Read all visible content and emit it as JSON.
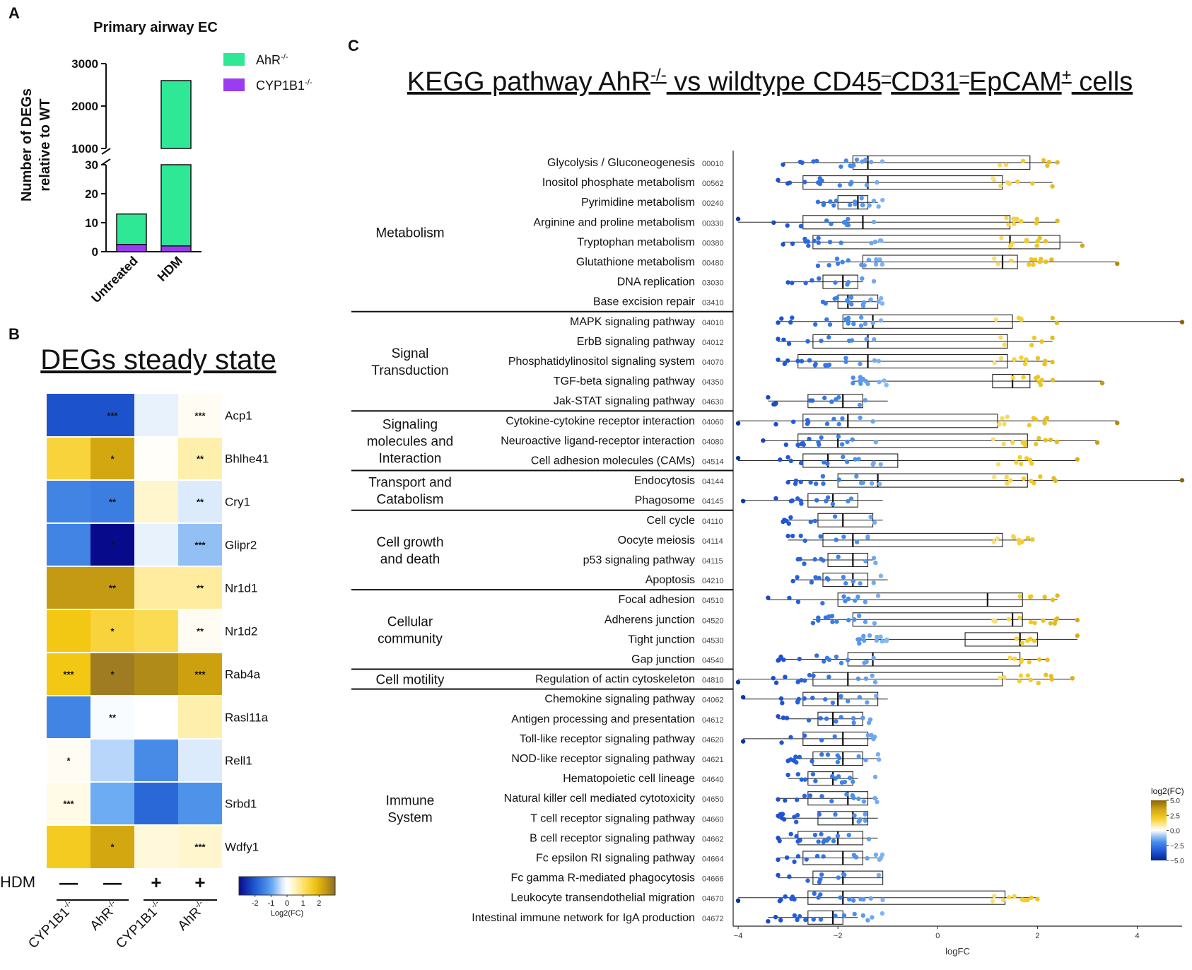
{
  "figure": {
    "panel_labels": [
      "A",
      "B",
      "C"
    ]
  },
  "panel_a": {
    "title": "Primary airway EC",
    "ylabel_line1": "Number of DEGs",
    "ylabel_line2": "relative to WT",
    "legend": [
      {
        "label": "AhR",
        "sup": "-/-",
        "color": "#2ee896"
      },
      {
        "label": "CYP1B1",
        "sup": "-/-",
        "color": "#9b3cf0"
      }
    ],
    "upper_ticks": [
      "3000",
      "2000",
      "1000"
    ],
    "lower_ticks": [
      "30",
      "20",
      "10",
      "0"
    ],
    "categories": [
      "Untreated",
      "HDM"
    ]
  },
  "panel_b": {
    "title": "DEGs steady state",
    "hdm_label": "HDM",
    "hdm_signs": [
      "—",
      "—",
      "+",
      "+"
    ],
    "columns": [
      {
        "label": "CYP1B1",
        "sup": "-/-"
      },
      {
        "label": "AhR",
        "sup": "-/-"
      },
      {
        "label": "CYP1B1",
        "sup": "-/-"
      },
      {
        "label": "AhR",
        "sup": "-/-"
      }
    ],
    "colorbar_ticks": [
      "-2",
      "-1",
      "0",
      "1",
      "2"
    ],
    "colorbar_label": "Log2(FC)"
  },
  "panel_c": {
    "title_main": "KEGG pathway AhR",
    "title_sup": "-/-",
    "title_rest": " vs wildtype CD45",
    "title_sup2": "–",
    "title_mid": "CD31",
    "title_sup3": "–",
    "title_end": "EpCAM",
    "title_sup4": "+",
    "title_tail": " cells",
    "xlabel": "logFC",
    "colorbar_title": "log2(FC)",
    "colorbar_ticks": [
      "5.0",
      "2.5",
      "0.0",
      "−2.5",
      "−5.0"
    ],
    "groups": [
      {
        "label_lines": [
          "Metabolism"
        ]
      },
      {
        "label_lines": [
          "Signal",
          "Transduction"
        ]
      },
      {
        "label_lines": [
          "Signaling",
          "molecules and",
          "Interaction"
        ]
      },
      {
        "label_lines": [
          "Transport and",
          "Catabolism"
        ]
      },
      {
        "label_lines": [
          "Cell growth",
          "and death"
        ]
      },
      {
        "label_lines": [
          "Cellular",
          "community"
        ]
      },
      {
        "label_lines": [
          "Cell motility"
        ]
      },
      {
        "label_lines": [
          "Immune",
          "System"
        ]
      }
    ]
  },
  "chart_data": [
    {
      "type": "bar",
      "panel": "A",
      "title": "Primary airway EC",
      "stacked": true,
      "broken_axis": true,
      "categories": [
        "Untreated",
        "HDM"
      ],
      "series": [
        {
          "name": "CYP1B1-/-",
          "values": [
            2.5,
            2
          ]
        },
        {
          "name": "AhR-/-",
          "values": [
            10.5,
            2598
          ]
        }
      ],
      "ylabel": "Number of DEGs relative to WT",
      "ylim_lower": [
        0,
        30
      ],
      "ylim_upper": [
        1000,
        3000
      ]
    },
    {
      "type": "heatmap",
      "panel": "B",
      "title": "DEGs steady state",
      "rows": [
        "Acp1",
        "Bhlhe41",
        "Cry1",
        "Glipr2",
        "Nr1d1",
        "Nr1d2",
        "Rab4a",
        "Rasl11a",
        "Rell1",
        "Srbd1",
        "Wdfy1"
      ],
      "columns": [
        "CYP1B1-/- HDM−",
        "AhR-/- HDM−",
        "CYP1B1-/- HDM+",
        "AhR-/- HDM+"
      ],
      "values": [
        [
          -2.1,
          -2.1,
          -0.2,
          0.1
        ],
        [
          1.4,
          2.2,
          0.05,
          0.6
        ],
        [
          -1.4,
          -1.5,
          0.4,
          -0.3
        ],
        [
          -1.4,
          -3.0,
          -0.2,
          -0.7
        ],
        [
          2.4,
          2.4,
          0.7,
          0.7
        ],
        [
          1.7,
          1.4,
          1.2,
          0.1
        ],
        [
          1.7,
          2.8,
          2.6,
          2.3
        ],
        [
          -1.4,
          -0.05,
          0.0,
          0.6
        ],
        [
          0.1,
          -0.5,
          -1.3,
          -0.3
        ],
        [
          0.2,
          -0.9,
          -1.8,
          -1.2
        ],
        [
          1.6,
          2.2,
          0.3,
          0.4
        ]
      ],
      "significance": [
        [
          "",
          "***",
          "",
          "***"
        ],
        [
          "",
          "*",
          "",
          "**"
        ],
        [
          "",
          "**",
          "",
          "**"
        ],
        [
          "",
          "*",
          "",
          "***"
        ],
        [
          "",
          "**",
          "",
          "**"
        ],
        [
          "",
          "*",
          "",
          "**"
        ],
        [
          "***",
          "*",
          "",
          "***"
        ],
        [
          "",
          "**",
          "",
          ""
        ],
        [
          "*",
          "",
          "",
          ""
        ],
        [
          "***",
          "",
          "",
          ""
        ],
        [
          "",
          "*",
          "",
          "***"
        ]
      ],
      "colorbar_range": [
        -3,
        3
      ],
      "colorbar_label": "Log2(FC)"
    },
    {
      "type": "scatter",
      "subtype": "boxplot_with_points",
      "panel": "C",
      "title": "KEGG pathway AhR-/- vs wildtype CD45–CD31–EpCAM+ cells",
      "xlabel": "logFC",
      "xlim": [
        -4.1,
        4.9
      ],
      "xticks": [
        -4,
        -2,
        0,
        2,
        4
      ],
      "color_scale": {
        "label": "log2(FC)",
        "range": [
          -5,
          5
        ]
      },
      "pathways": [
        {
          "name": "Glycolysis / Gluconeogenesis",
          "id": "00010",
          "group": 0,
          "q1": -1.7,
          "median": -1.4,
          "q3": 1.85,
          "wmin": -3.1,
          "wmax": 2.4
        },
        {
          "name": "Inositol phosphate metabolism",
          "id": "00562",
          "group": 0,
          "q1": -2.7,
          "median": -1.4,
          "q3": 1.3,
          "wmin": -3.2,
          "wmax": 2.3
        },
        {
          "name": "Pyrimidine metabolism",
          "id": "00240",
          "group": 0,
          "q1": -2.0,
          "median": -1.6,
          "q3": -1.4,
          "wmin": -2.4,
          "wmax": -1.2
        },
        {
          "name": "Arginine and proline metabolism",
          "id": "00330",
          "group": 0,
          "q1": -2.7,
          "median": -1.5,
          "q3": 1.45,
          "wmin": -4.0,
          "wmax": 2.4
        },
        {
          "name": "Tryptophan metabolism",
          "id": "00380",
          "group": 0,
          "q1": -2.5,
          "median": 1.45,
          "q3": 2.45,
          "wmin": -3.1,
          "wmax": 2.9
        },
        {
          "name": "Glutathione metabolism",
          "id": "00480",
          "group": 0,
          "q1": -1.5,
          "median": 1.3,
          "q3": 1.6,
          "wmin": -2.4,
          "wmax": 3.6
        },
        {
          "name": "DNA replication",
          "id": "03030",
          "group": 0,
          "q1": -2.3,
          "median": -1.9,
          "q3": -1.6,
          "wmin": -3.0,
          "wmax": -1.5
        },
        {
          "name": "Base excision repair",
          "id": "03410",
          "group": 0,
          "q1": -2.0,
          "median": -1.8,
          "q3": -1.2,
          "wmin": -2.3,
          "wmax": -1.2
        },
        {
          "name": "MAPK signaling pathway",
          "id": "04010",
          "group": 1,
          "q1": -1.9,
          "median": -1.3,
          "q3": 1.5,
          "wmin": -3.2,
          "wmax": 4.9
        },
        {
          "name": "ErbB signaling pathway",
          "id": "04012",
          "group": 1,
          "q1": -2.5,
          "median": -1.4,
          "q3": 1.4,
          "wmin": -3.2,
          "wmax": 2.3
        },
        {
          "name": "Phosphatidylinositol signaling system",
          "id": "04070",
          "group": 1,
          "q1": -2.8,
          "median": -1.4,
          "q3": 1.4,
          "wmin": -3.2,
          "wmax": 2.3
        },
        {
          "name": "TGF-beta signaling pathway",
          "id": "04350",
          "group": 1,
          "q1": 1.1,
          "median": 1.5,
          "q3": 1.85,
          "wmin": -1.7,
          "wmax": 3.3
        },
        {
          "name": "Jak-STAT signaling pathway",
          "id": "04630",
          "group": 1,
          "q1": -2.6,
          "median": -1.9,
          "q3": -1.5,
          "wmin": -3.4,
          "wmax": -1.0
        },
        {
          "name": "Cytokine-cytokine receptor interaction",
          "id": "04060",
          "group": 2,
          "q1": -2.7,
          "median": -1.8,
          "q3": 1.2,
          "wmin": -4.0,
          "wmax": 3.6
        },
        {
          "name": "Neuroactive ligand-receptor interaction",
          "id": "04080",
          "group": 2,
          "q1": -2.8,
          "median": -2.0,
          "q3": 1.8,
          "wmin": -3.5,
          "wmax": 3.2
        },
        {
          "name": "Cell adhesion molecules (CAMs)",
          "id": "04514",
          "group": 2,
          "q1": -2.7,
          "median": -2.2,
          "q3": -0.8,
          "wmin": -4.0,
          "wmax": 2.8
        },
        {
          "name": "Endocytosis",
          "id": "04144",
          "group": 3,
          "q1": -2.0,
          "median": -1.2,
          "q3": 1.8,
          "wmin": -3.0,
          "wmax": 4.9
        },
        {
          "name": "Phagosome",
          "id": "04145",
          "group": 3,
          "q1": -2.6,
          "median": -2.1,
          "q3": -1.6,
          "wmin": -3.9,
          "wmax": -1.1
        },
        {
          "name": "Cell cycle",
          "id": "04110",
          "group": 4,
          "q1": -2.4,
          "median": -1.9,
          "q3": -1.3,
          "wmin": -3.1,
          "wmax": -1.1
        },
        {
          "name": "Oocyte meiosis",
          "id": "04114",
          "group": 4,
          "q1": -2.3,
          "median": -1.7,
          "q3": 1.3,
          "wmin": -3.0,
          "wmax": 1.9
        },
        {
          "name": "p53 signaling pathway",
          "id": "04115",
          "group": 4,
          "q1": -2.2,
          "median": -1.7,
          "q3": -1.4,
          "wmin": -2.8,
          "wmax": -1.3
        },
        {
          "name": "Apoptosis",
          "id": "04210",
          "group": 4,
          "q1": -2.3,
          "median": -1.7,
          "q3": -1.4,
          "wmin": -2.9,
          "wmax": -1.0
        },
        {
          "name": "Focal adhesion",
          "id": "04510",
          "group": 5,
          "q1": -2.0,
          "median": 1.0,
          "q3": 1.7,
          "wmin": -3.4,
          "wmax": 2.4
        },
        {
          "name": "Adherens junction",
          "id": "04520",
          "group": 5,
          "q1": -1.7,
          "median": 1.5,
          "q3": 1.7,
          "wmin": -2.5,
          "wmax": 2.8
        },
        {
          "name": "Tight junction",
          "id": "04530",
          "group": 5,
          "q1": 0.55,
          "median": 1.65,
          "q3": 2.0,
          "wmin": -1.6,
          "wmax": 2.8
        },
        {
          "name": "Gap junction",
          "id": "04540",
          "group": 5,
          "q1": -1.8,
          "median": -1.3,
          "q3": 1.65,
          "wmin": -3.2,
          "wmax": 2.2
        },
        {
          "name": "Regulation of actin cytoskeleton",
          "id": "04810",
          "group": 6,
          "q1": -2.5,
          "median": -1.8,
          "q3": 1.3,
          "wmin": -4.0,
          "wmax": 2.7
        },
        {
          "name": "Chemokine signaling pathway",
          "id": "04062",
          "group": 7,
          "q1": -2.7,
          "median": -2.0,
          "q3": -1.2,
          "wmin": -3.9,
          "wmax": -1.0
        },
        {
          "name": "Antigen processing and presentation",
          "id": "04612",
          "group": 7,
          "q1": -2.4,
          "median": -2.1,
          "q3": -1.5,
          "wmin": -3.2,
          "wmax": -1.5
        },
        {
          "name": "Toll-like receptor signaling pathway",
          "id": "04620",
          "group": 7,
          "q1": -2.7,
          "median": -1.9,
          "q3": -1.4,
          "wmin": -3.9,
          "wmax": -1.3
        },
        {
          "name": "NOD-like receptor signaling pathway",
          "id": "04621",
          "group": 7,
          "q1": -2.5,
          "median": -1.9,
          "q3": -1.5,
          "wmin": -3.0,
          "wmax": -1.2
        },
        {
          "name": "Hematopoietic cell lineage",
          "id": "04640",
          "group": 7,
          "q1": -2.6,
          "median": -2.1,
          "q3": -1.7,
          "wmin": -3.0,
          "wmax": -1.6
        },
        {
          "name": "Natural killer cell mediated cytotoxicity",
          "id": "04650",
          "group": 7,
          "q1": -2.6,
          "median": -1.8,
          "q3": -1.4,
          "wmin": -3.2,
          "wmax": -1.2
        },
        {
          "name": "T cell receptor signaling pathway",
          "id": "04660",
          "group": 7,
          "q1": -2.4,
          "median": -1.7,
          "q3": -1.4,
          "wmin": -3.2,
          "wmax": -1.2
        },
        {
          "name": "B cell receptor signaling pathway",
          "id": "04662",
          "group": 7,
          "q1": -2.8,
          "median": -2.0,
          "q3": -1.5,
          "wmin": -3.2,
          "wmax": -1.2
        },
        {
          "name": "Fc epsilon RI signaling pathway",
          "id": "04664",
          "group": 7,
          "q1": -2.7,
          "median": -1.9,
          "q3": -1.5,
          "wmin": -3.2,
          "wmax": -1.2
        },
        {
          "name": "Fc gamma R-mediated phagocytosis",
          "id": "04666",
          "group": 7,
          "q1": -2.5,
          "median": -1.9,
          "q3": -1.1,
          "wmin": -3.2,
          "wmax": -1.1
        },
        {
          "name": "Leukocyte transendothelial migration",
          "id": "04670",
          "group": 7,
          "q1": -2.6,
          "median": -1.9,
          "q3": 1.35,
          "wmin": -4.0,
          "wmax": 2.0
        },
        {
          "name": "Intestinal immune network for IgA production",
          "id": "04672",
          "group": 7,
          "q1": -2.6,
          "median": -2.1,
          "q3": -1.9,
          "wmin": -3.4,
          "wmax": -1.6
        }
      ]
    }
  ]
}
